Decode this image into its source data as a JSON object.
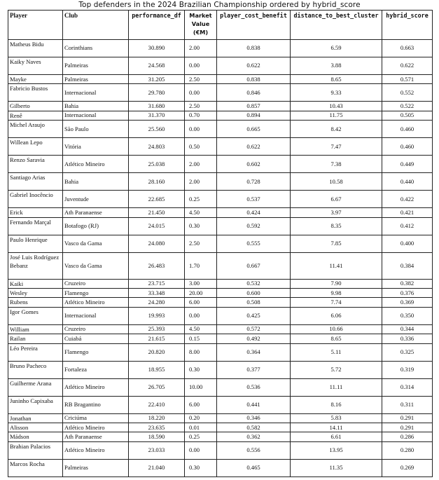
{
  "title": "Top defenders in the 2024 Brazilian Championship ordered by hybrid_score",
  "columns": {
    "player": "Player",
    "club": "Club",
    "performance": "performance_df",
    "market": "Market Value (€M)",
    "cost": "player_cost_benefit",
    "distance": "distance_to_best_cluster",
    "hybrid": "hybrid_score"
  },
  "rows": [
    {
      "player": "Matheus Bidu",
      "club": "Corinthians",
      "performance": "30.890",
      "market": "2.00",
      "cost": "0.838",
      "distance": "6.59",
      "hybrid": "0.663",
      "lines": 2
    },
    {
      "player": "Kaiky Naves",
      "club": "Palmeiras",
      "performance": "24.568",
      "market": "0.00",
      "cost": "0.622",
      "distance": "3.88",
      "hybrid": "0.622",
      "lines": 2
    },
    {
      "player": "Mayke",
      "club": "Palmeiras",
      "performance": "31.205",
      "market": "2.50",
      "cost": "0.838",
      "distance": "8.65",
      "hybrid": "0.571",
      "lines": 1
    },
    {
      "player": "Fabricio Bustos",
      "club": "Internacional",
      "performance": "29.780",
      "market": "0.00",
      "cost": "0.846",
      "distance": "9.33",
      "hybrid": "0.552",
      "lines": 2
    },
    {
      "player": "Gilberto",
      "club": "Bahia",
      "performance": "31.680",
      "market": "2.50",
      "cost": "0.857",
      "distance": "10.43",
      "hybrid": "0.522",
      "lines": 1
    },
    {
      "player": "Renê",
      "club": "Internacional",
      "performance": "31.370",
      "market": "0.70",
      "cost": "0.894",
      "distance": "11.75",
      "hybrid": "0.505",
      "lines": 1
    },
    {
      "player": "Michel Araujo",
      "club": "São Paulo",
      "performance": "25.560",
      "market": "0.00",
      "cost": "0.665",
      "distance": "8.42",
      "hybrid": "0.460",
      "lines": 2
    },
    {
      "player": "Willean Lepo",
      "club": "Vitória",
      "performance": "24.803",
      "market": "0.50",
      "cost": "0.622",
      "distance": "7.47",
      "hybrid": "0.460",
      "lines": 2
    },
    {
      "player": "Renzo Saravia",
      "club": "Atlético Mineiro",
      "performance": "25.038",
      "market": "2.00",
      "cost": "0.602",
      "distance": "7.38",
      "hybrid": "0.449",
      "lines": 2
    },
    {
      "player": "Santiago Arias",
      "club": "Bahia",
      "performance": "28.160",
      "market": "2.00",
      "cost": "0.728",
      "distance": "10.58",
      "hybrid": "0.440",
      "lines": 2
    },
    {
      "player": "Gabriel Inocêncio",
      "club": "Juventude",
      "performance": "22.685",
      "market": "0.25",
      "cost": "0.537",
      "distance": "6.67",
      "hybrid": "0.422",
      "lines": 2
    },
    {
      "player": "Erick",
      "club": "Ath Paranaense",
      "performance": "21.450",
      "market": "4.50",
      "cost": "0.424",
      "distance": "3.97",
      "hybrid": "0.421",
      "lines": 1
    },
    {
      "player": "Fernando Marçal",
      "club": "Botafogo (RJ)",
      "performance": "24.015",
      "market": "0.30",
      "cost": "0.592",
      "distance": "8.35",
      "hybrid": "0.412",
      "lines": 2
    },
    {
      "player": "Paulo Henrique",
      "club": "Vasco da Gama",
      "performance": "24.080",
      "market": "2.50",
      "cost": "0.555",
      "distance": "7.85",
      "hybrid": "0.400",
      "lines": 2
    },
    {
      "player": "José Luis Rodríguez Bebanz",
      "club": "Vasco da Gama",
      "performance": "26.483",
      "market": "1.70",
      "cost": "0.667",
      "distance": "11.41",
      "hybrid": "0.384",
      "lines": 3
    },
    {
      "player": "Kaiki",
      "club": "Cruzeiro",
      "performance": "23.715",
      "market": "3.00",
      "cost": "0.532",
      "distance": "7.90",
      "hybrid": "0.382",
      "lines": 1
    },
    {
      "player": "Wesley",
      "club": "Flamengo",
      "performance": "33.348",
      "market": "20.00",
      "cost": "0.600",
      "distance": "9.98",
      "hybrid": "0.376",
      "lines": 1
    },
    {
      "player": "Rubens",
      "club": "Atlético Mineiro",
      "performance": "24.280",
      "market": "6.00",
      "cost": "0.508",
      "distance": "7.74",
      "hybrid": "0.369",
      "lines": 1
    },
    {
      "player": "Igor Gomes",
      "club": "Internacional",
      "performance": "19.993",
      "market": "0.00",
      "cost": "0.425",
      "distance": "6.06",
      "hybrid": "0.350",
      "lines": 2
    },
    {
      "player": "William",
      "club": "Cruzeiro",
      "performance": "25.393",
      "market": "4.50",
      "cost": "0.572",
      "distance": "10.66",
      "hybrid": "0.344",
      "lines": 1
    },
    {
      "player": "Railan",
      "club": "Cuiabá",
      "performance": "21.615",
      "market": "0.15",
      "cost": "0.492",
      "distance": "8.65",
      "hybrid": "0.336",
      "lines": 1
    },
    {
      "player": "Léo Pereira",
      "club": "Flamengo",
      "performance": "20.820",
      "market": "8.00",
      "cost": "0.364",
      "distance": "5.11",
      "hybrid": "0.325",
      "lines": 2
    },
    {
      "player": "Bruno Pacheco",
      "club": "Fortaleza",
      "performance": "18.955",
      "market": "0.30",
      "cost": "0.377",
      "distance": "5.72",
      "hybrid": "0.319",
      "lines": 2
    },
    {
      "player": "Guilherme Arana",
      "club": "Atlético Mineiro",
      "performance": "26.705",
      "market": "10.00",
      "cost": "0.536",
      "distance": "11.11",
      "hybrid": "0.314",
      "lines": 2
    },
    {
      "player": "Juninho Capixaba",
      "club": "RB Bragantino",
      "performance": "22.410",
      "market": "6.00",
      "cost": "0.441",
      "distance": "8.16",
      "hybrid": "0.311",
      "lines": 2
    },
    {
      "player": "Jonathan",
      "club": "Criciúma",
      "performance": "18.220",
      "market": "0.20",
      "cost": "0.346",
      "distance": "5.83",
      "hybrid": "0.291",
      "lines": 1
    },
    {
      "player": "Alisson",
      "club": "Atlético Mineiro",
      "performance": "23.635",
      "market": "0.01",
      "cost": "0.582",
      "distance": "14.11",
      "hybrid": "0.291",
      "lines": 1
    },
    {
      "player": "Mádson",
      "club": "Ath Paranaense",
      "performance": "18.590",
      "market": "0.25",
      "cost": "0.362",
      "distance": "6.61",
      "hybrid": "0.286",
      "lines": 1
    },
    {
      "player": "Brahian Palacios",
      "club": "Atlético Mineiro",
      "performance": "23.033",
      "market": "0.00",
      "cost": "0.556",
      "distance": "13.95",
      "hybrid": "0.280",
      "lines": 2
    },
    {
      "player": "Marcos Rocha",
      "club": "Palmeiras",
      "performance": "21.040",
      "market": "0.30",
      "cost": "0.465",
      "distance": "11.35",
      "hybrid": "0.269",
      "lines": 2
    }
  ]
}
